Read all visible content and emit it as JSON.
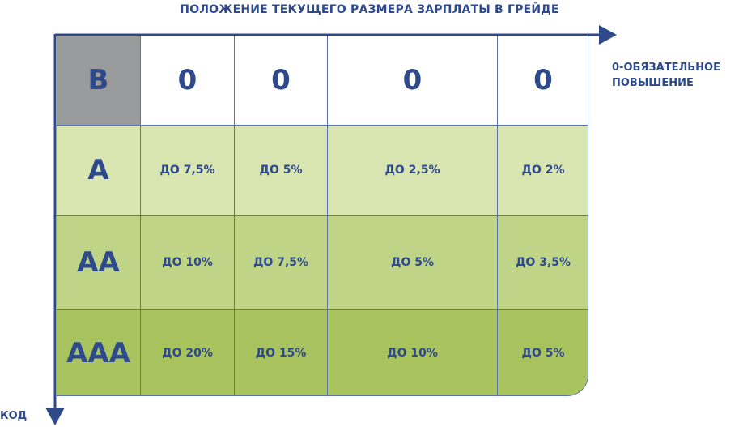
{
  "x_axis_title": "ПОЛОЖЕНИЕ ТЕКУЩЕГО РАЗМЕРА ЗАРПЛАТЫ В ГРЕЙДЕ",
  "y_axis_title": "КОД",
  "right_note": "0-ОБЯЗАТЕЛЬНОЕ ПОВЫШЕНИЕ",
  "colors": {
    "axis": "#2e4a8b",
    "text": "#2e4a8b",
    "grid_line": "#5a72ad",
    "code_b_bg": "#9a9b9d",
    "row_a_bg": "#d9e6b1",
    "row_aa_bg": "#bfd486",
    "row_aaa_bg": "#a9c45e"
  },
  "rows": [
    {
      "code": "В",
      "values": [
        "0",
        "0",
        "0",
        "0"
      ]
    },
    {
      "code": "А",
      "values": [
        "ДО 7,5%",
        "ДО 5%",
        "ДО 2,5%",
        "ДО 2%"
      ]
    },
    {
      "code": "АА",
      "values": [
        "ДО 10%",
        "ДО 7,5%",
        "ДО 5%",
        "ДО 3,5%"
      ]
    },
    {
      "code": "ААА",
      "values": [
        "ДО 20%",
        "ДО 15%",
        "ДО 10%",
        "ДО 5%"
      ]
    }
  ]
}
